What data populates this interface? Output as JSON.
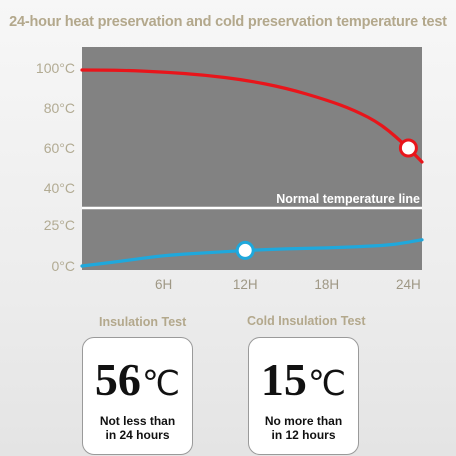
{
  "title": "24-hour heat preservation and cold preservation temperature test",
  "chart_data": {
    "type": "line",
    "x_ticks": [
      {
        "label": "6H",
        "value": 6
      },
      {
        "label": "12H",
        "value": 12
      },
      {
        "label": "18H",
        "value": 18
      },
      {
        "label": "24H",
        "value": 24
      }
    ],
    "y_ticks": [
      {
        "label": "100°C",
        "value": 100
      },
      {
        "label": "80°C",
        "value": 80
      },
      {
        "label": "60°C",
        "value": 60
      },
      {
        "label": "40°C",
        "value": 40
      },
      {
        "label": "25°C",
        "value": 25
      },
      {
        "label": "0°C",
        "value": 0
      }
    ],
    "xlim": [
      0,
      25
    ],
    "reference_line": {
      "label": "Normal temperature line"
    },
    "series": [
      {
        "color": "#e8151b",
        "x": [
          0,
          3,
          6,
          9,
          12,
          15,
          18,
          20,
          22,
          24,
          25
        ],
        "y": [
          99,
          98.9,
          98,
          96.5,
          94,
          90,
          84,
          79,
          72,
          60,
          53
        ],
        "marker": {
          "x": 24,
          "y": 60
        }
      },
      {
        "color": "#1fa8dc",
        "x": [
          0,
          3,
          6,
          9,
          12,
          15,
          18,
          21,
          23,
          25
        ],
        "y": [
          0,
          3,
          6.5,
          8,
          9.5,
          10.5,
          11,
          12,
          13,
          16
        ],
        "marker": {
          "x": 12,
          "y": 9.5
        }
      }
    ],
    "grid": false
  },
  "cards": [
    {
      "title": "Insulation Test",
      "value": "56",
      "unit": "℃",
      "line1": "Not less than",
      "line2": "in 24 hours"
    },
    {
      "title": "Cold Insulation Test",
      "value": "15",
      "unit": "℃",
      "line1": "No more than",
      "line2": "in 12 hours"
    }
  ]
}
